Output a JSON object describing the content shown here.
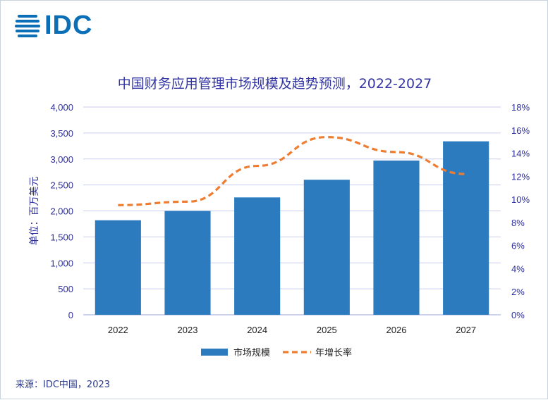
{
  "brand": {
    "logo_text": "IDC",
    "logo_color": "#0b6fb8"
  },
  "title": "中国财务应用管理市场规模及趋势预测，2022-2027",
  "source": "来源：IDC中国，2023",
  "chart_data": {
    "type": "bar",
    "categories": [
      "2022",
      "2023",
      "2024",
      "2025",
      "2026",
      "2027"
    ],
    "series": [
      {
        "name": "市场规模",
        "type": "bar",
        "axis": "left",
        "color": "#2c7bbf",
        "values": [
          1820,
          2000,
          2260,
          2600,
          2970,
          3340
        ]
      },
      {
        "name": "年增长率",
        "type": "line",
        "style": "dashed",
        "axis": "right",
        "color": "#ee7d31",
        "values": [
          9.5,
          9.8,
          12.9,
          15.4,
          14.1,
          12.2
        ]
      }
    ],
    "ylabel": "单位：百万美元",
    "ylim": [
      0,
      4000
    ],
    "y_ticks": [
      "0",
      "500",
      "1,000",
      "1,500",
      "2,000",
      "2,500",
      "3,000",
      "3,500",
      "4,000"
    ],
    "y2lim": [
      0,
      18
    ],
    "y2_ticks": [
      "0%",
      "2%",
      "4%",
      "6%",
      "8%",
      "10%",
      "12%",
      "14%",
      "16%",
      "18%"
    ],
    "grid": true,
    "legend": "bottom"
  }
}
